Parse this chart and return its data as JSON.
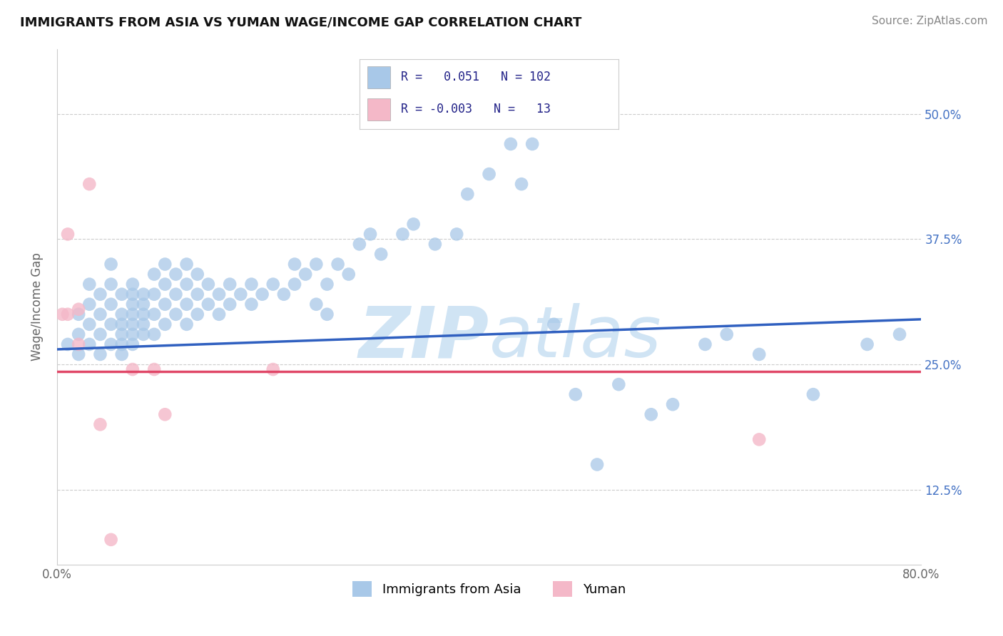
{
  "title": "IMMIGRANTS FROM ASIA VS YUMAN WAGE/INCOME GAP CORRELATION CHART",
  "source": "Source: ZipAtlas.com",
  "ylabel": "Wage/Income Gap",
  "xlim": [
    0.0,
    0.8
  ],
  "ylim": [
    0.05,
    0.565
  ],
  "xtick_positions": [
    0.0,
    0.2,
    0.4,
    0.6,
    0.8
  ],
  "xticklabels": [
    "0.0%",
    "",
    "",
    "",
    "80.0%"
  ],
  "ytick_positions": [
    0.125,
    0.25,
    0.375,
    0.5
  ],
  "yticklabels": [
    "12.5%",
    "25.0%",
    "37.5%",
    "50.0%"
  ],
  "blue_scatter_x": [
    0.01,
    0.02,
    0.02,
    0.02,
    0.03,
    0.03,
    0.03,
    0.03,
    0.04,
    0.04,
    0.04,
    0.04,
    0.05,
    0.05,
    0.05,
    0.05,
    0.05,
    0.06,
    0.06,
    0.06,
    0.06,
    0.06,
    0.06,
    0.07,
    0.07,
    0.07,
    0.07,
    0.07,
    0.07,
    0.07,
    0.08,
    0.08,
    0.08,
    0.08,
    0.08,
    0.09,
    0.09,
    0.09,
    0.09,
    0.1,
    0.1,
    0.1,
    0.1,
    0.11,
    0.11,
    0.11,
    0.12,
    0.12,
    0.12,
    0.12,
    0.13,
    0.13,
    0.13,
    0.14,
    0.14,
    0.15,
    0.15,
    0.16,
    0.16,
    0.17,
    0.18,
    0.18,
    0.19,
    0.2,
    0.21,
    0.22,
    0.22,
    0.23,
    0.24,
    0.24,
    0.25,
    0.25,
    0.26,
    0.27,
    0.28,
    0.29,
    0.3,
    0.32,
    0.33,
    0.35,
    0.37,
    0.38,
    0.4,
    0.42,
    0.43,
    0.44,
    0.46,
    0.48,
    0.5,
    0.52,
    0.55,
    0.57,
    0.6,
    0.62,
    0.65,
    0.7,
    0.75,
    0.78
  ],
  "blue_scatter_y": [
    0.27,
    0.26,
    0.28,
    0.3,
    0.27,
    0.29,
    0.31,
    0.33,
    0.26,
    0.28,
    0.3,
    0.32,
    0.27,
    0.29,
    0.31,
    0.33,
    0.35,
    0.26,
    0.28,
    0.3,
    0.32,
    0.27,
    0.29,
    0.27,
    0.29,
    0.31,
    0.33,
    0.28,
    0.3,
    0.32,
    0.28,
    0.3,
    0.32,
    0.29,
    0.31,
    0.28,
    0.3,
    0.32,
    0.34,
    0.29,
    0.31,
    0.33,
    0.35,
    0.3,
    0.32,
    0.34,
    0.29,
    0.31,
    0.33,
    0.35,
    0.3,
    0.32,
    0.34,
    0.31,
    0.33,
    0.3,
    0.32,
    0.31,
    0.33,
    0.32,
    0.31,
    0.33,
    0.32,
    0.33,
    0.32,
    0.33,
    0.35,
    0.34,
    0.31,
    0.35,
    0.3,
    0.33,
    0.35,
    0.34,
    0.37,
    0.38,
    0.36,
    0.38,
    0.39,
    0.37,
    0.38,
    0.42,
    0.44,
    0.47,
    0.43,
    0.47,
    0.29,
    0.22,
    0.15,
    0.23,
    0.2,
    0.21,
    0.27,
    0.28,
    0.26,
    0.22,
    0.27,
    0.28
  ],
  "pink_scatter_x": [
    0.005,
    0.01,
    0.01,
    0.02,
    0.02,
    0.03,
    0.04,
    0.05,
    0.07,
    0.09,
    0.1,
    0.2,
    0.65
  ],
  "pink_scatter_y": [
    0.3,
    0.38,
    0.3,
    0.27,
    0.305,
    0.43,
    0.19,
    0.075,
    0.245,
    0.245,
    0.2,
    0.245,
    0.175
  ],
  "blue_line_x": [
    0.0,
    0.8
  ],
  "blue_line_y": [
    0.265,
    0.295
  ],
  "pink_line_x": [
    0.0,
    0.8
  ],
  "pink_line_y": [
    0.243,
    0.243
  ],
  "blue_color": "#a8c8e8",
  "pink_color": "#f4b8c8",
  "blue_line_color": "#3060c0",
  "pink_line_color": "#e04868",
  "background_color": "#ffffff",
  "grid_color": "#cccccc",
  "watermark_text": "ZIPAtlas",
  "watermark_color": "#d0e4f4"
}
